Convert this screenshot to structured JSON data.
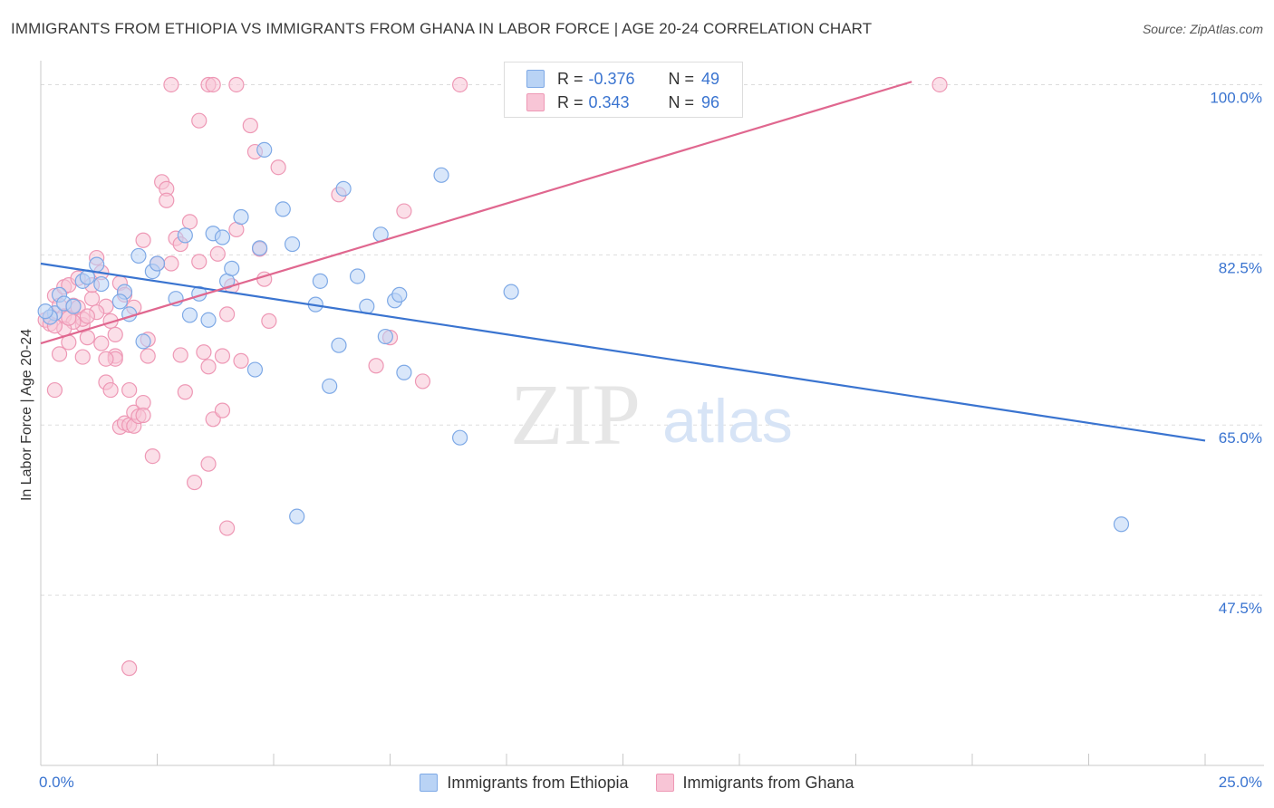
{
  "title": "IMMIGRANTS FROM ETHIOPIA VS IMMIGRANTS FROM GHANA IN LABOR FORCE | AGE 20-24 CORRELATION CHART",
  "source": "Source: ZipAtlas.com",
  "watermark": {
    "zip": "ZIP",
    "atlas": "atlas"
  },
  "legend_top": {
    "r_label": "R =",
    "n_label": "N =",
    "rows": [
      {
        "series": "Immigrants from Ethiopia",
        "r": "-0.376",
        "n": "49"
      },
      {
        "series": "Immigrants from Ghana",
        "r": "0.343",
        "n": "96"
      }
    ]
  },
  "legend_bottom": [
    "Immigrants from Ethiopia",
    "Immigrants from Ghana"
  ],
  "chart_data": {
    "type": "scatter",
    "title": "IMMIGRANTS FROM ETHIOPIA VS IMMIGRANTS FROM GHANA IN LABOR FORCE | AGE 20-24 CORRELATION CHART",
    "xlabel": "",
    "ylabel": "In Labor Force | Age 20-24",
    "xlim": [
      0,
      25
    ],
    "ylim": [
      30,
      102
    ],
    "x_tick_labels": [
      "0.0%",
      "25.0%"
    ],
    "y_ticks": [
      47.5,
      65.0,
      82.5,
      100.0
    ],
    "y_tick_labels": [
      "47.5%",
      "65.0%",
      "82.5%",
      "100.0%"
    ],
    "grid": true,
    "colors": {
      "ethiopia_fill": "#b9d3f5",
      "ethiopia_stroke": "#7ea9e6",
      "ethiopia_line": "#3a74d0",
      "ghana_fill": "#f8c5d6",
      "ghana_stroke": "#ee98b5",
      "ghana_line": "#e0678f",
      "tick_label": "#3a74d0",
      "grid": "#dddddd"
    },
    "series": [
      {
        "name": "Immigrants from Ethiopia",
        "trend": {
          "x": [
            0.0,
            25.0
          ],
          "y": [
            81.6,
            63.4
          ]
        },
        "points": [
          [
            0.3,
            76.5
          ],
          [
            0.4,
            78.4
          ],
          [
            0.5,
            77.5
          ],
          [
            0.7,
            77.2
          ],
          [
            0.9,
            79.8
          ],
          [
            1.0,
            80.2
          ],
          [
            1.2,
            81.5
          ],
          [
            1.3,
            79.5
          ],
          [
            1.8,
            78.7
          ],
          [
            1.7,
            77.7
          ],
          [
            1.9,
            76.4
          ],
          [
            2.1,
            82.4
          ],
          [
            2.2,
            73.6
          ],
          [
            2.4,
            80.8
          ],
          [
            2.5,
            81.6
          ],
          [
            2.9,
            78.0
          ],
          [
            3.1,
            84.5
          ],
          [
            3.2,
            76.3
          ],
          [
            3.4,
            78.5
          ],
          [
            3.6,
            75.8
          ],
          [
            3.7,
            84.7
          ],
          [
            3.9,
            84.3
          ],
          [
            4.0,
            79.8
          ],
          [
            4.1,
            81.1
          ],
          [
            4.3,
            86.4
          ],
          [
            4.6,
            70.7
          ],
          [
            4.7,
            83.2
          ],
          [
            4.8,
            93.3
          ],
          [
            5.2,
            87.2
          ],
          [
            5.4,
            83.6
          ],
          [
            5.5,
            55.6
          ],
          [
            5.9,
            77.4
          ],
          [
            6.0,
            79.8
          ],
          [
            6.2,
            69.0
          ],
          [
            6.4,
            73.2
          ],
          [
            6.5,
            89.3
          ],
          [
            6.8,
            80.3
          ],
          [
            7.0,
            77.2
          ],
          [
            7.3,
            84.6
          ],
          [
            7.4,
            74.1
          ],
          [
            7.6,
            77.8
          ],
          [
            7.7,
            78.4
          ],
          [
            7.8,
            70.4
          ],
          [
            8.6,
            90.7
          ],
          [
            9.0,
            63.7
          ],
          [
            10.1,
            78.7
          ],
          [
            23.2,
            54.8
          ],
          [
            0.2,
            76.1
          ],
          [
            0.1,
            76.7
          ]
        ]
      },
      {
        "name": "Immigrants from Ghana",
        "trend": {
          "x": [
            0.0,
            18.7
          ],
          "y": [
            73.4,
            100.3
          ]
        },
        "points": [
          [
            0.1,
            75.8
          ],
          [
            0.2,
            76.1
          ],
          [
            0.2,
            75.4
          ],
          [
            0.3,
            78.3
          ],
          [
            0.3,
            68.6
          ],
          [
            0.4,
            77.3
          ],
          [
            0.4,
            72.3
          ],
          [
            0.5,
            79.2
          ],
          [
            0.5,
            76.2
          ],
          [
            0.6,
            79.4
          ],
          [
            0.6,
            73.5
          ],
          [
            0.7,
            77.3
          ],
          [
            0.8,
            80.1
          ],
          [
            0.8,
            77.1
          ],
          [
            0.9,
            75.3
          ],
          [
            0.9,
            72.0
          ],
          [
            1.0,
            74.0
          ],
          [
            1.1,
            78.0
          ],
          [
            1.1,
            79.4
          ],
          [
            1.2,
            82.2
          ],
          [
            1.3,
            80.7
          ],
          [
            1.3,
            73.4
          ],
          [
            1.4,
            69.4
          ],
          [
            1.4,
            77.2
          ],
          [
            1.5,
            75.7
          ],
          [
            1.5,
            68.6
          ],
          [
            1.6,
            72.1
          ],
          [
            1.6,
            71.8
          ],
          [
            1.7,
            79.6
          ],
          [
            1.7,
            64.8
          ],
          [
            1.8,
            78.4
          ],
          [
            1.8,
            65.2
          ],
          [
            1.9,
            68.6
          ],
          [
            1.9,
            65.0
          ],
          [
            2.0,
            77.1
          ],
          [
            2.0,
            64.9
          ],
          [
            2.0,
            66.3
          ],
          [
            2.1,
            65.9
          ],
          [
            2.2,
            84.0
          ],
          [
            2.2,
            67.3
          ],
          [
            2.2,
            66.0
          ],
          [
            2.3,
            72.1
          ],
          [
            2.4,
            61.8
          ],
          [
            2.5,
            81.6
          ],
          [
            2.6,
            90.0
          ],
          [
            2.7,
            89.3
          ],
          [
            2.7,
            88.1
          ],
          [
            2.8,
            81.6
          ],
          [
            2.9,
            84.2
          ],
          [
            3.0,
            83.6
          ],
          [
            3.0,
            72.2
          ],
          [
            3.1,
            68.4
          ],
          [
            3.2,
            85.9
          ],
          [
            3.3,
            59.1
          ],
          [
            3.4,
            96.3
          ],
          [
            3.4,
            81.8
          ],
          [
            3.5,
            72.5
          ],
          [
            3.6,
            71.0
          ],
          [
            3.6,
            61.0
          ],
          [
            3.7,
            65.6
          ],
          [
            3.8,
            82.6
          ],
          [
            3.9,
            72.1
          ],
          [
            3.9,
            66.5
          ],
          [
            4.0,
            76.4
          ],
          [
            4.1,
            79.3
          ],
          [
            4.2,
            85.1
          ],
          [
            4.3,
            71.6
          ],
          [
            4.5,
            95.8
          ],
          [
            4.6,
            93.1
          ],
          [
            4.7,
            83.1
          ],
          [
            4.8,
            80.0
          ],
          [
            4.9,
            75.7
          ],
          [
            5.1,
            91.5
          ],
          [
            0.9,
            75.9
          ],
          [
            2.8,
            100.0
          ],
          [
            3.6,
            100.0
          ],
          [
            3.7,
            100.0
          ],
          [
            4.2,
            100.0
          ],
          [
            9.0,
            100.0
          ],
          [
            19.3,
            100.0
          ],
          [
            7.5,
            74.0
          ],
          [
            6.4,
            88.7
          ],
          [
            7.8,
            87.0
          ],
          [
            7.2,
            71.1
          ],
          [
            8.2,
            69.5
          ],
          [
            4.0,
            54.4
          ],
          [
            1.9,
            40.0
          ],
          [
            1.4,
            71.8
          ],
          [
            0.7,
            75.6
          ],
          [
            1.2,
            76.6
          ],
          [
            0.5,
            74.9
          ],
          [
            1.0,
            76.2
          ],
          [
            2.3,
            73.8
          ],
          [
            1.6,
            74.3
          ],
          [
            0.3,
            75.2
          ],
          [
            0.6,
            76.0
          ]
        ]
      }
    ]
  }
}
